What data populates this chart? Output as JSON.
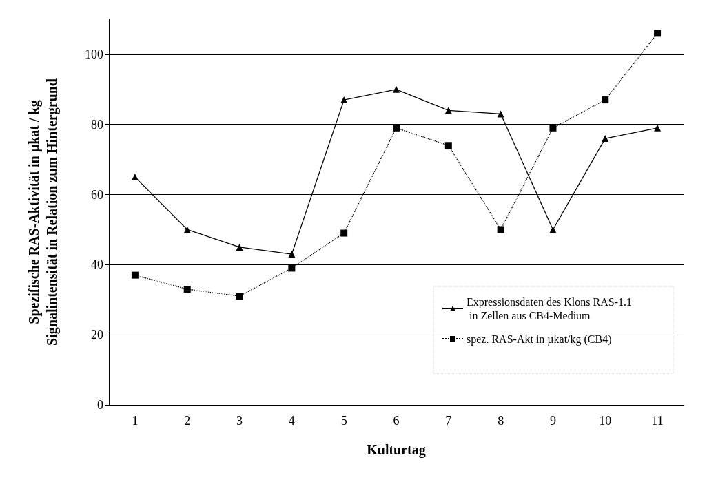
{
  "chart_data": {
    "type": "line",
    "xlabel": "Kulturtag",
    "ylabel": "Spezifische RAS-Aktivität in µkat / kg\nSignalintensität in Relation zum Hintergrund",
    "categories": [
      "1",
      "2",
      "3",
      "4",
      "5",
      "6",
      "7",
      "8",
      "9",
      "10",
      "11"
    ],
    "series": [
      {
        "name": "Expressionsdaten des Klons RAS-1.1 in Zellen aus CB4-Medium",
        "color": "#000000",
        "marker": "triangle",
        "line_style": "solid",
        "values": [
          65,
          50,
          45,
          43,
          87,
          90,
          84,
          83,
          50,
          76,
          79
        ]
      },
      {
        "name": "spez. RAS-Akt in µkat/kg (CB4)",
        "color": "#000000",
        "marker": "square",
        "line_style": "dotted",
        "values": [
          37,
          33,
          31,
          39,
          49,
          79,
          74,
          50,
          79,
          87,
          106
        ]
      }
    ],
    "ylim": [
      0,
      110
    ],
    "yticks": [
      0,
      20,
      40,
      60,
      80,
      100
    ],
    "grid": "y",
    "legend": "bottom right"
  }
}
